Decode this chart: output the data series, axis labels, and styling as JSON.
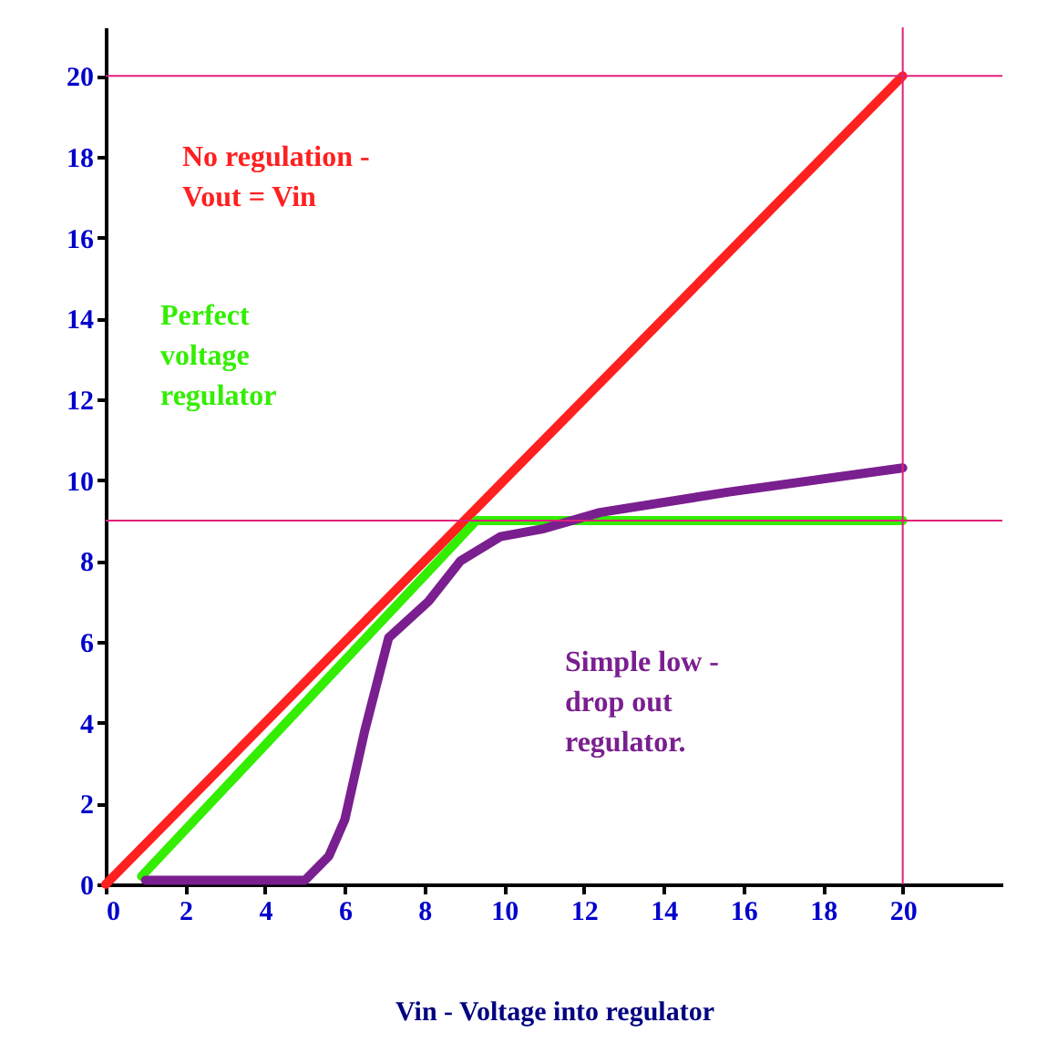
{
  "chart_data": {
    "type": "line",
    "xlabel": "Vin -  Voltage into regulator",
    "xlim": [
      0,
      22.5
    ],
    "ylim": [
      0,
      21.2
    ],
    "xticks": [
      0,
      2,
      4,
      6,
      8,
      10,
      12,
      14,
      16,
      18,
      20
    ],
    "yticks": [
      0,
      2,
      4,
      6,
      8,
      10,
      12,
      14,
      16,
      18,
      20
    ],
    "grid": false,
    "line_style": "solid",
    "series": [
      {
        "name": "No regulation -\nVout = Vin",
        "color": "#ff2020",
        "x": [
          0,
          20
        ],
        "values": [
          0,
          20
        ]
      },
      {
        "name": "Perfect\nvoltage\nregulator",
        "color": "#33ee00",
        "x": [
          0.9,
          9.3,
          20
        ],
        "values": [
          0.2,
          9,
          9
        ]
      },
      {
        "name": "Simple low -\ndrop out\nregulator.",
        "color": "#7a1f8f",
        "x": [
          1,
          5,
          5.6,
          6,
          6.5,
          7.1,
          8.1,
          8.9,
          9.9,
          11,
          12.4,
          15.6,
          20
        ],
        "values": [
          0.1,
          0.1,
          0.7,
          1.6,
          3.8,
          6.1,
          7,
          8,
          8.6,
          8.8,
          9.2,
          9.7,
          10.3
        ]
      }
    ],
    "ref_lines": [
      {
        "axis": "y",
        "value": 20,
        "color": "#e0207a"
      },
      {
        "axis": "y",
        "value": 9,
        "color": "#e0207a"
      },
      {
        "axis": "x",
        "value": 20,
        "color": "#e0207a"
      }
    ]
  }
}
